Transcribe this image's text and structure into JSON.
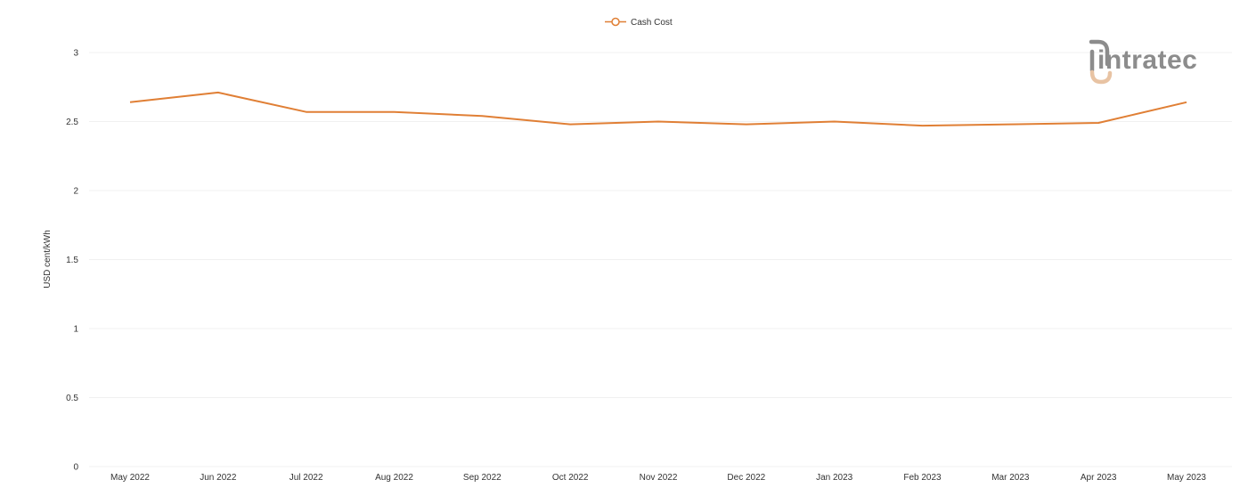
{
  "chart_data": {
    "type": "line",
    "title": "",
    "xlabel": "",
    "ylabel": "USD cent/kWh",
    "categories": [
      "May 2022",
      "Jun 2022",
      "Jul 2022",
      "Aug 2022",
      "Sep 2022",
      "Oct 2022",
      "Nov 2022",
      "Dec 2022",
      "Jan 2023",
      "Feb 2023",
      "Mar 2023",
      "Apr 2023",
      "May 2023"
    ],
    "series": [
      {
        "name": "Cash Cost",
        "color": "#e07f35",
        "values": [
          2.64,
          2.71,
          2.57,
          2.57,
          2.54,
          2.48,
          2.5,
          2.48,
          2.5,
          2.47,
          2.48,
          2.49,
          2.64
        ]
      }
    ],
    "ylim": [
      0,
      3
    ],
    "yticks": [
      "0",
      "0.5",
      "1",
      "1.5",
      "2",
      "2.5",
      "3"
    ],
    "grid": true,
    "legend_position": "top-center"
  },
  "legend": {
    "label": "Cash Cost"
  },
  "logo": {
    "text": "intratec",
    "colors": {
      "text": "#8c8c8c",
      "accent": "#e8c3a3"
    }
  }
}
